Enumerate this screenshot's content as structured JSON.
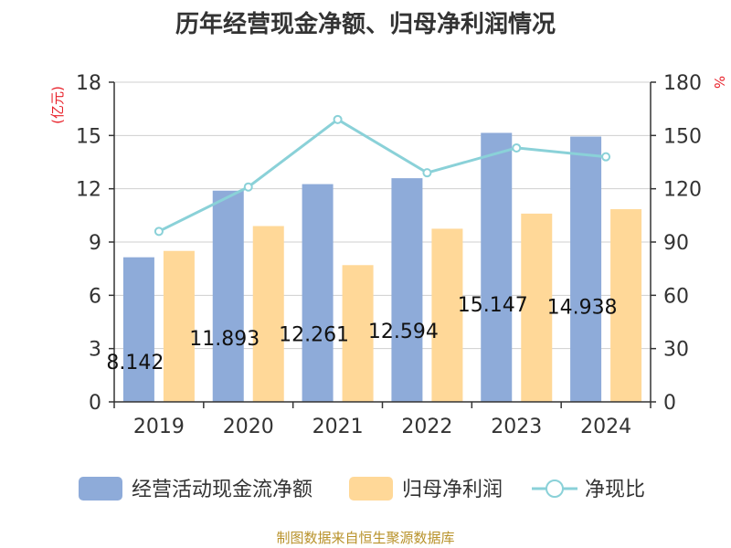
{
  "title": "历年经营现金净额、归母净利润情况",
  "source": "制图数据来自恒生聚源数据库",
  "colors": {
    "bar1": "#8eabd9",
    "bar2": "#ffd898",
    "line": "#8ad1d8",
    "unit": "#e8212a",
    "axis": "#333333",
    "grid": "#cfcfcf"
  },
  "chart_data": {
    "type": "bar+line",
    "categories": [
      "2019",
      "2020",
      "2021",
      "2022",
      "2023",
      "2024"
    ],
    "series": [
      {
        "name": "经营活动现金流净额",
        "type": "bar",
        "axis": "left",
        "values": [
          8.142,
          11.893,
          12.261,
          12.594,
          15.147,
          14.938
        ],
        "labels": [
          "8.142",
          "11.893",
          "12.261",
          "12.594",
          "15.147",
          "14.938"
        ]
      },
      {
        "name": "归母净利润",
        "type": "bar",
        "axis": "left",
        "values": [
          8.5,
          9.9,
          7.7,
          9.75,
          10.6,
          10.85
        ]
      },
      {
        "name": "净现比",
        "type": "line",
        "axis": "right",
        "values": [
          96,
          121,
          159,
          129,
          143,
          138
        ]
      }
    ],
    "left_axis": {
      "label": "(亿元)",
      "min": 0,
      "max": 18,
      "ticks": [
        0,
        3,
        6,
        9,
        12,
        15,
        18
      ]
    },
    "right_axis": {
      "label": "%",
      "min": 0,
      "max": 180,
      "ticks": [
        0,
        30,
        60,
        90,
        120,
        150,
        180
      ]
    },
    "legend": {
      "position": "bottom",
      "entries": [
        "经营活动现金流净额",
        "归母净利润",
        "净现比"
      ]
    },
    "grid": true
  }
}
